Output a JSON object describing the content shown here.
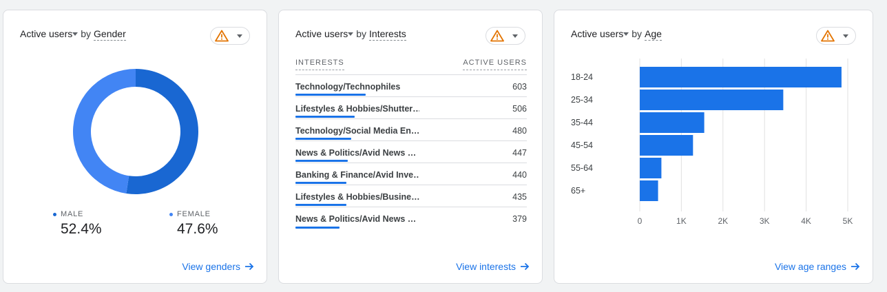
{
  "colors": {
    "accent": "#1a73e8",
    "male": "#1967d2",
    "female": "#4285f4",
    "warning": "#e37400"
  },
  "gender_card": {
    "title_metric": "Active users",
    "title_by": "by",
    "title_dimension": "Gender",
    "legend": [
      {
        "label": "MALE",
        "value": "52.4%",
        "share": 0.524
      },
      {
        "label": "FEMALE",
        "value": "47.6%",
        "share": 0.476
      }
    ],
    "view_link": "View genders"
  },
  "interests_card": {
    "title_metric": "Active users",
    "title_by": "by",
    "title_dimension": "Interests",
    "col_interests": "INTERESTS",
    "col_active_users": "ACTIVE USERS",
    "rows": [
      {
        "name": "Technology/Technophiles",
        "value": "603"
      },
      {
        "name": "Lifestyles & Hobbies/Shutter…",
        "value": "506"
      },
      {
        "name": "Technology/Social Media En…",
        "value": "480"
      },
      {
        "name": "News & Politics/Avid News …",
        "value": "447"
      },
      {
        "name": "Banking & Finance/Avid Inve…",
        "value": "440"
      },
      {
        "name": "Lifestyles & Hobbies/Busine…",
        "value": "435"
      },
      {
        "name": "News & Politics/Avid News …",
        "value": "379"
      }
    ],
    "view_link": "View interests"
  },
  "age_card": {
    "title_metric": "Active users",
    "title_by": "by",
    "title_dimension": "Age",
    "view_link": "View age ranges"
  },
  "chart_data": {
    "type": "bar",
    "orientation": "horizontal",
    "categories": [
      "18-24",
      "25-34",
      "35-44",
      "45-54",
      "55-64",
      "65+"
    ],
    "values": [
      4850,
      3450,
      1550,
      1280,
      520,
      440
    ],
    "x_ticks": [
      "0",
      "1K",
      "2K",
      "3K",
      "4K",
      "5K"
    ],
    "xlim": [
      0,
      5000
    ],
    "grid": true
  }
}
